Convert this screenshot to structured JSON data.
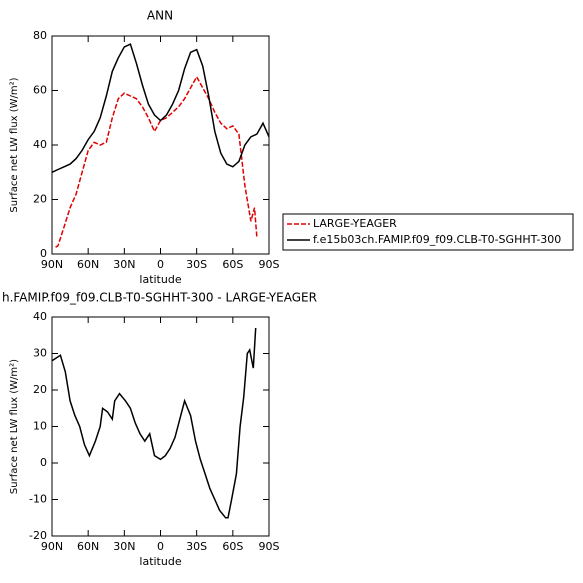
{
  "chart_data": [
    {
      "type": "line",
      "title": "ANN",
      "xlabel": "latitude",
      "ylabel": "Surface net LW flux (W/m²)",
      "xlim": [
        90,
        -90
      ],
      "xticks": [
        {
          "value": 90,
          "label": "90N"
        },
        {
          "value": 60,
          "label": "60N"
        },
        {
          "value": 30,
          "label": "30N"
        },
        0,
        {
          "value": -30,
          "label": "30S"
        },
        {
          "value": -60,
          "label": "60S"
        },
        {
          "value": -90,
          "label": "90S"
        }
      ],
      "ylim": [
        0,
        80
      ],
      "yticks": [
        0,
        20,
        40,
        60,
        80
      ],
      "legend": "right",
      "series": [
        {
          "name": "LARGE-YEAGER",
          "color": "#e00000",
          "dash": true,
          "x": [
            87,
            85,
            80,
            75,
            70,
            65,
            60,
            55,
            50,
            45,
            40,
            35,
            30,
            25,
            20,
            15,
            10,
            5,
            0,
            -5,
            -10,
            -15,
            -20,
            -25,
            -30,
            -35,
            -40,
            -45,
            -50,
            -55,
            -60,
            -65,
            -70,
            -75,
            -78,
            -80
          ],
          "values": [
            2.5,
            3,
            10,
            17,
            22,
            30,
            38,
            41,
            40,
            41,
            50,
            57,
            59,
            58,
            57,
            54,
            50,
            45,
            49,
            50,
            52,
            54,
            57,
            61,
            65,
            61,
            57,
            52,
            48,
            46,
            47,
            44,
            25,
            12,
            17,
            6
          ]
        },
        {
          "name": "f.e15b03ch.FAMIP.f09_f09.CLB-T0-SGHHT-300",
          "color": "#000000",
          "dash": false,
          "x": [
            90,
            85,
            80,
            75,
            70,
            65,
            60,
            55,
            50,
            45,
            40,
            35,
            30,
            25,
            20,
            15,
            10,
            5,
            0,
            -5,
            -10,
            -15,
            -20,
            -25,
            -30,
            -35,
            -40,
            -45,
            -50,
            -55,
            -60,
            -65,
            -70,
            -75,
            -80,
            -85,
            -90
          ],
          "values": [
            30,
            31,
            32,
            33,
            35,
            38,
            42,
            45,
            50,
            58,
            67,
            72,
            76,
            77,
            70,
            62,
            55,
            51,
            49,
            51,
            55,
            60,
            68,
            74,
            75,
            69,
            58,
            45,
            37,
            33,
            32,
            34,
            40,
            43,
            44,
            48,
            43
          ]
        }
      ]
    },
    {
      "type": "line",
      "title": "h.FAMIP.f09_f09.CLB-T0-SGHHT-300 - LARGE-YEAGER",
      "xlabel": "latitude",
      "ylabel": "Surface net LW flux (W/m²)",
      "xlim": [
        90,
        -90
      ],
      "xticks": [
        {
          "value": 90,
          "label": "90N"
        },
        {
          "value": 60,
          "label": "60N"
        },
        {
          "value": 30,
          "label": "30N"
        },
        0,
        {
          "value": -30,
          "label": "30S"
        },
        {
          "value": -60,
          "label": "60S"
        },
        {
          "value": -90,
          "label": "90S"
        }
      ],
      "ylim": [
        -20,
        40
      ],
      "yticks": [
        -20,
        -10,
        0,
        10,
        20,
        30,
        40
      ],
      "series": [
        {
          "color": "#000000",
          "dash": false,
          "x": [
            90,
            83,
            79,
            75,
            71,
            67,
            63,
            59,
            54,
            50,
            48,
            44,
            40,
            38,
            34,
            29,
            25,
            21,
            17,
            13,
            9,
            5,
            0,
            -4,
            -8,
            -12,
            -16,
            -20,
            -25,
            -29,
            -33,
            -37,
            -41,
            -45,
            -49,
            -54,
            -56,
            -59,
            -63,
            -66,
            -69,
            -72,
            -74,
            -77,
            -79
          ],
          "values": [
            28,
            29.5,
            25,
            17,
            13,
            10,
            5,
            2,
            6,
            10,
            15,
            14,
            12,
            17,
            19,
            17,
            15,
            11,
            8,
            6,
            8,
            2,
            1,
            2,
            4,
            7,
            12,
            17,
            13,
            6,
            1,
            -3,
            -7,
            -10,
            -13,
            -15,
            -15,
            -10,
            -3,
            10,
            18,
            30,
            31,
            26,
            37
          ]
        }
      ]
    }
  ]
}
